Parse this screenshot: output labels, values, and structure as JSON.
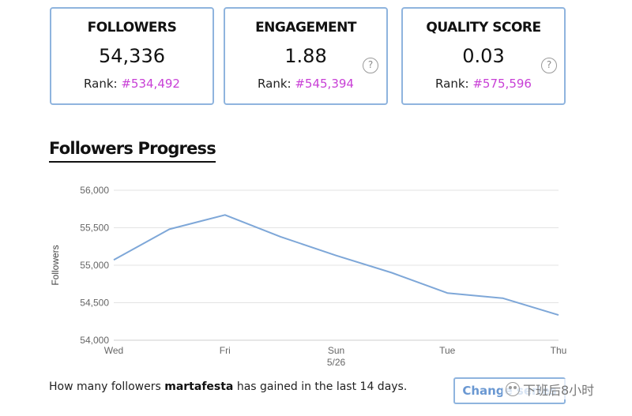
{
  "stats": {
    "followers": {
      "title": "FOLLOWERS",
      "value": "54,336",
      "rank_label": "Rank:",
      "rank_value": "#534,492"
    },
    "engagement": {
      "title": "ENGAGEMENT",
      "value": "1.88",
      "rank_label": "Rank:",
      "rank_value": "#545,394",
      "help": "?"
    },
    "quality": {
      "title": "QUALITY SCORE",
      "value": "0.03",
      "rank_label": "Rank:",
      "rank_value": "#575,596",
      "help": "?"
    }
  },
  "section": {
    "title": "Followers Progress"
  },
  "chart_data": {
    "type": "line",
    "ylabel": "Followers",
    "ylim": [
      54000,
      56000
    ],
    "yticks": [
      "56,000",
      "55,500",
      "55,000",
      "54,500",
      "54,000"
    ],
    "ytick_values": [
      56000,
      55500,
      55000,
      54500,
      54000
    ],
    "xtick_labels": [
      {
        "label": "Wed",
        "sub": ""
      },
      {
        "label": "Fri",
        "sub": ""
      },
      {
        "label": "Sun",
        "sub": "5/26"
      },
      {
        "label": "Tue",
        "sub": ""
      },
      {
        "label": "Thu",
        "sub": ""
      }
    ],
    "xtick_index": [
      0,
      2,
      4,
      6,
      8
    ],
    "series": [
      {
        "values": [
          55070,
          55480,
          55670,
          55380,
          55130,
          54900,
          54630,
          54560,
          54336
        ]
      }
    ],
    "grid": true,
    "line_color": "#7ea7d8"
  },
  "footer": {
    "prefix": "How many followers ",
    "username": "martafesta",
    "suffix": " has gained in the last 14 days."
  },
  "change_button": {
    "label": "Change series"
  },
  "watermark": {
    "text": "下班后8小时"
  },
  "colors": {
    "border": "#8fb4de",
    "rank": "#c83fd6",
    "line": "#7ea7d8"
  }
}
